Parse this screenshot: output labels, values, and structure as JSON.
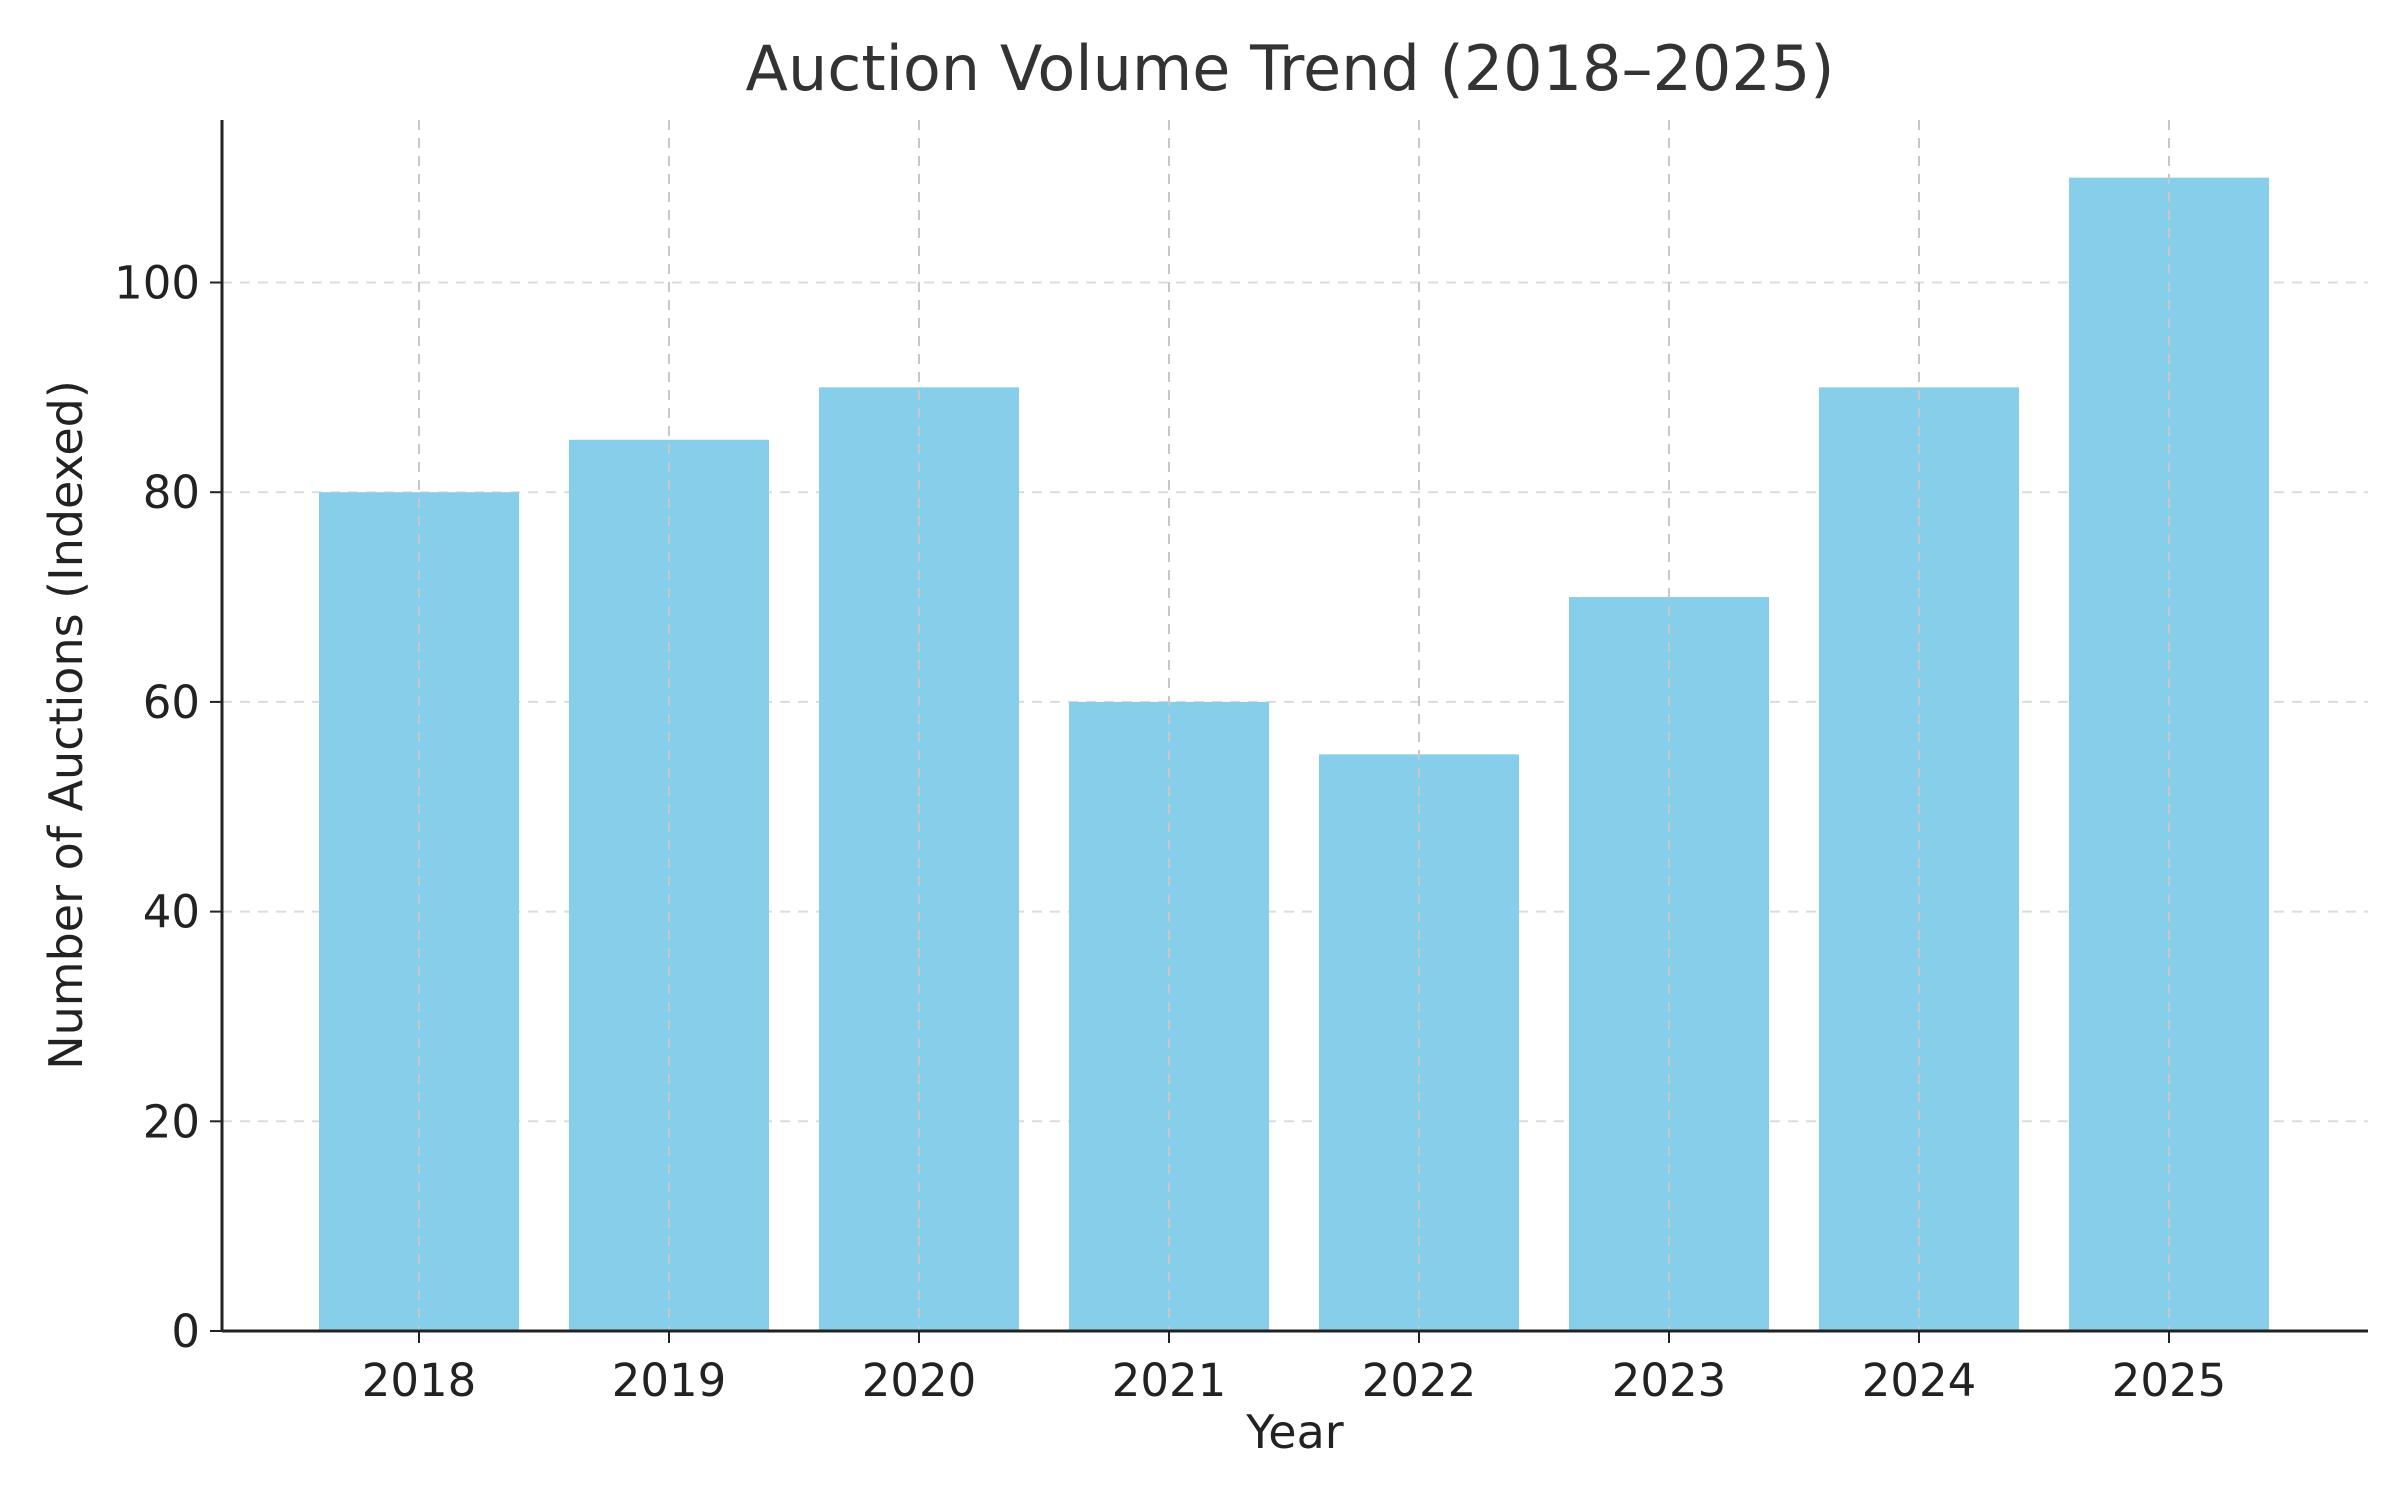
{
  "chart_data": {
    "type": "bar",
    "title": "Auction Volume Trend (2018–2025)",
    "xlabel": "Year",
    "ylabel": "Number of Auctions (Indexed)",
    "categories": [
      "2018",
      "2019",
      "2020",
      "2021",
      "2022",
      "2023",
      "2024",
      "2025"
    ],
    "values": [
      80,
      85,
      90,
      60,
      55,
      70,
      90,
      110
    ],
    "ylim": [
      0,
      115.5
    ],
    "yticks": [
      0,
      20,
      40,
      60,
      80,
      100
    ],
    "grid": true,
    "legend": "none",
    "bar_color": "#87CEEB"
  }
}
